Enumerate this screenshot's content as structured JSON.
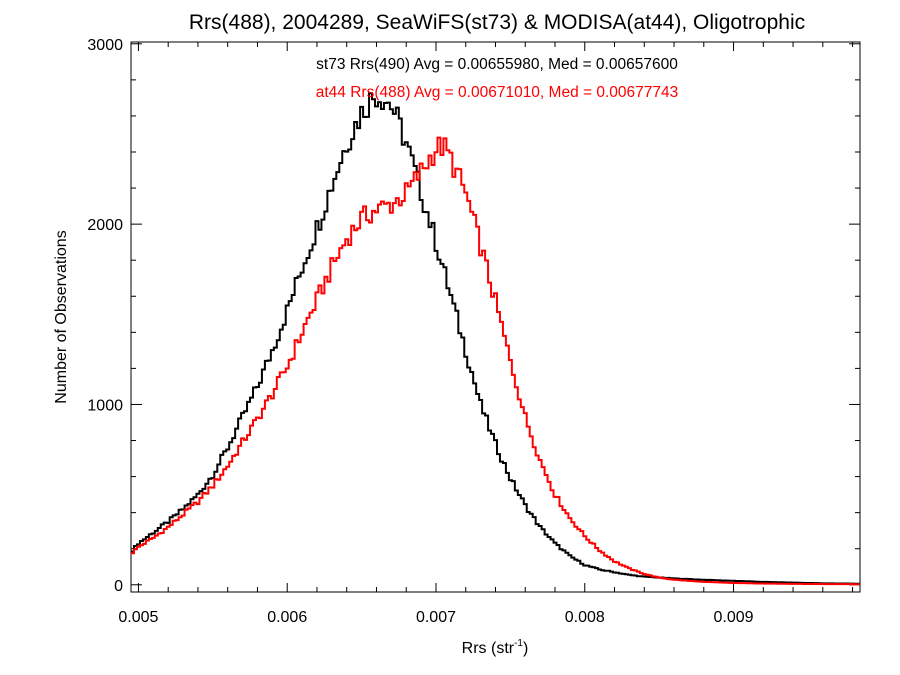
{
  "chart_data": {
    "type": "line",
    "title": "Rrs(488), 2004289, SeaWiFS(st73) & MODISA(at44), Oligotrophic",
    "xlabel_main": "Rrs (str",
    "xlabel_sup": "-1",
    "xlabel_close": ")",
    "ylabel": "Number of Observations",
    "xlim": [
      0.00495,
      0.00985
    ],
    "ylim": [
      -40,
      3010
    ],
    "x_ticks": [
      {
        "value": 0.005,
        "label": "0.005"
      },
      {
        "value": 0.006,
        "label": "0.006"
      },
      {
        "value": 0.007,
        "label": "0.007"
      },
      {
        "value": 0.008,
        "label": "0.008"
      },
      {
        "value": 0.009,
        "label": "0.009"
      }
    ],
    "y_ticks": [
      {
        "value": 0,
        "label": "0"
      },
      {
        "value": 1000,
        "label": "1000"
      },
      {
        "value": 2000,
        "label": "2000"
      },
      {
        "value": 3000,
        "label": "3000"
      }
    ],
    "legend_placement": "top-center",
    "series": [
      {
        "legend": "st73 Rrs(490) Avg = 0.00655980, Med = 0.00657600",
        "color": "#000000",
        "step": "histogram",
        "x": [
          0.00495,
          0.005,
          0.0051,
          0.0052,
          0.0053,
          0.0054,
          0.0055,
          0.0056,
          0.0057,
          0.0058,
          0.0059,
          0.006,
          0.0061,
          0.0062,
          0.0063,
          0.0064,
          0.0065,
          0.00655,
          0.0066,
          0.00665,
          0.0067,
          0.00675,
          0.0068,
          0.0069,
          0.007,
          0.0071,
          0.0072,
          0.0073,
          0.0074,
          0.0075,
          0.0076,
          0.0077,
          0.0078,
          0.0079,
          0.008,
          0.0081,
          0.0082,
          0.0083,
          0.0084,
          0.0085,
          0.0086,
          0.0088,
          0.009,
          0.0092,
          0.0094,
          0.0096,
          0.00985
        ],
        "y": [
          180,
          230,
          290,
          350,
          420,
          500,
          610,
          760,
          930,
          1100,
          1300,
          1520,
          1760,
          1980,
          2220,
          2450,
          2620,
          2680,
          2720,
          2700,
          2660,
          2560,
          2450,
          2180,
          1900,
          1600,
          1300,
          1000,
          780,
          590,
          440,
          320,
          230,
          160,
          110,
          85,
          70,
          55,
          45,
          40,
          35,
          28,
          22,
          16,
          12,
          8,
          6
        ]
      },
      {
        "legend": "at44 Rrs(488) Avg = 0.00671010, Med = 0.00677743",
        "color": "#ff0000",
        "step": "histogram",
        "x": [
          0.00495,
          0.005,
          0.0051,
          0.0052,
          0.0053,
          0.0054,
          0.0055,
          0.0056,
          0.0057,
          0.0058,
          0.0059,
          0.006,
          0.0061,
          0.0062,
          0.0063,
          0.0064,
          0.0065,
          0.0066,
          0.0067,
          0.0068,
          0.0069,
          0.007,
          0.00705,
          0.0071,
          0.0072,
          0.0073,
          0.0074,
          0.0075,
          0.0076,
          0.0077,
          0.0078,
          0.0079,
          0.008,
          0.0081,
          0.0082,
          0.0083,
          0.0084,
          0.0085,
          0.0086,
          0.0088,
          0.009,
          0.0092,
          0.0094,
          0.0096,
          0.00985
        ],
        "y": [
          170,
          210,
          260,
          320,
          390,
          460,
          550,
          660,
          790,
          920,
          1060,
          1210,
          1400,
          1580,
          1760,
          1920,
          2030,
          2080,
          2110,
          2170,
          2290,
          2420,
          2430,
          2360,
          2170,
          1880,
          1570,
          1240,
          930,
          690,
          500,
          370,
          270,
          190,
          130,
          90,
          60,
          40,
          28,
          16,
          10,
          7,
          5,
          4,
          3
        ]
      }
    ]
  }
}
